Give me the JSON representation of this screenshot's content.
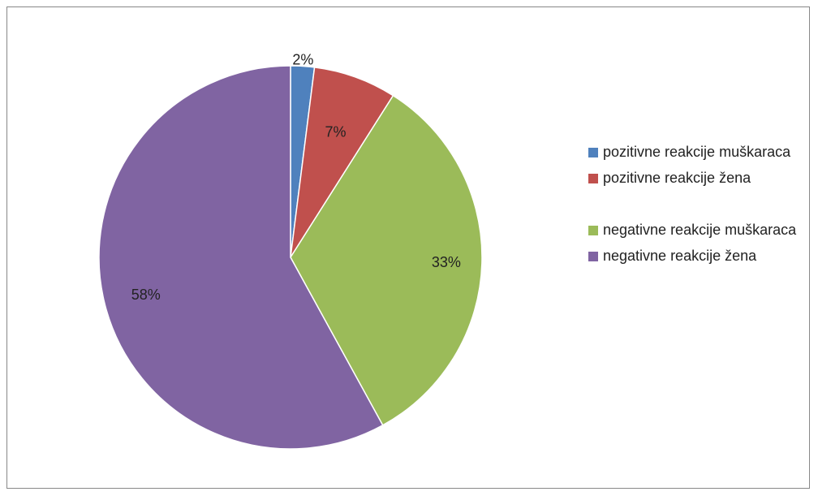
{
  "chart_data": {
    "type": "pie",
    "slices": [
      {
        "label": "pozitivne reakcije muškaraca",
        "value": 2,
        "display": "2%",
        "color": "#4F81BD"
      },
      {
        "label": "pozitivne reakcije žena",
        "value": 7,
        "display": "7%",
        "color": "#C0504D"
      },
      {
        "label": "negativne reakcije muškaraca",
        "value": 33,
        "display": "33%",
        "color": "#9BBB59"
      },
      {
        "label": "negativne reakcije žena",
        "value": 58,
        "display": "58%",
        "color": "#8064A2"
      }
    ],
    "legend_position": "right",
    "start_angle": "12 o'clock",
    "direction": "clockwise"
  }
}
